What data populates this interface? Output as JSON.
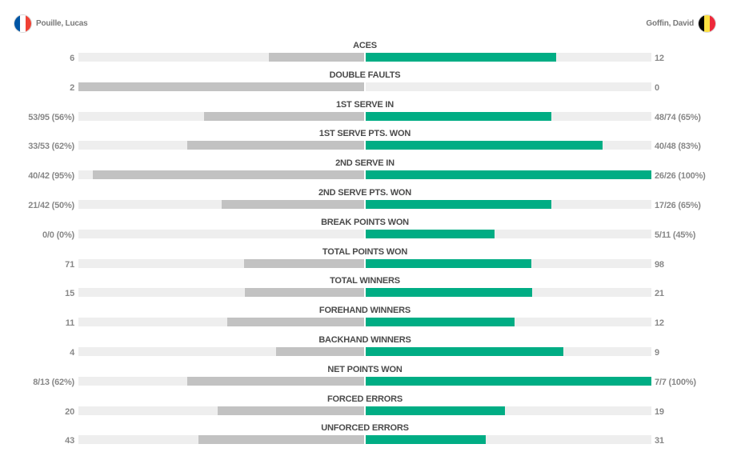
{
  "players": {
    "left": {
      "name": "Pouille, Lucas",
      "flag_colors": [
        "#0055a4",
        "#ffffff",
        "#ef4135"
      ]
    },
    "right": {
      "name": "Goffin, David",
      "flag_colors": [
        "#000000",
        "#fae042",
        "#ed2939"
      ]
    }
  },
  "colors": {
    "left_bar": "#c2c2c2",
    "right_bar": "#00ad84",
    "track": "#eeeeee"
  },
  "chart_data": {
    "type": "bar",
    "orientation": "diverging-horizontal",
    "categories": [
      "ACES",
      "DOUBLE FAULTS",
      "1ST SERVE IN",
      "1ST SERVE PTS. WON",
      "2ND SERVE IN",
      "2ND SERVE PTS. WON",
      "BREAK POINTS WON",
      "TOTAL POINTS WON",
      "TOTAL WINNERS",
      "FOREHAND WINNERS",
      "BACKHAND WINNERS",
      "NET POINTS WON",
      "FORCED ERRORS",
      "UNFORCED ERRORS"
    ],
    "series": [
      {
        "name": "Pouille, Lucas",
        "labels": [
          "6",
          "2",
          "53/95 (56%)",
          "33/53 (62%)",
          "40/42 (95%)",
          "21/42 (50%)",
          "0/0 (0%)",
          "71",
          "15",
          "11",
          "4",
          "8/13 (62%)",
          "20",
          "43"
        ],
        "fractions": [
          0.333,
          1.0,
          0.56,
          0.62,
          0.95,
          0.5,
          0.0,
          0.42,
          0.417,
          0.478,
          0.308,
          0.62,
          0.513,
          0.581
        ]
      },
      {
        "name": "Goffin, David",
        "labels": [
          "12",
          "0",
          "48/74 (65%)",
          "40/48 (83%)",
          "26/26 (100%)",
          "17/26 (65%)",
          "5/11 (45%)",
          "98",
          "21",
          "12",
          "9",
          "7/7 (100%)",
          "19",
          "31"
        ],
        "fractions": [
          0.667,
          0.0,
          0.65,
          0.83,
          1.0,
          0.65,
          0.45,
          0.58,
          0.583,
          0.522,
          0.692,
          1.0,
          0.487,
          0.419
        ]
      }
    ]
  }
}
